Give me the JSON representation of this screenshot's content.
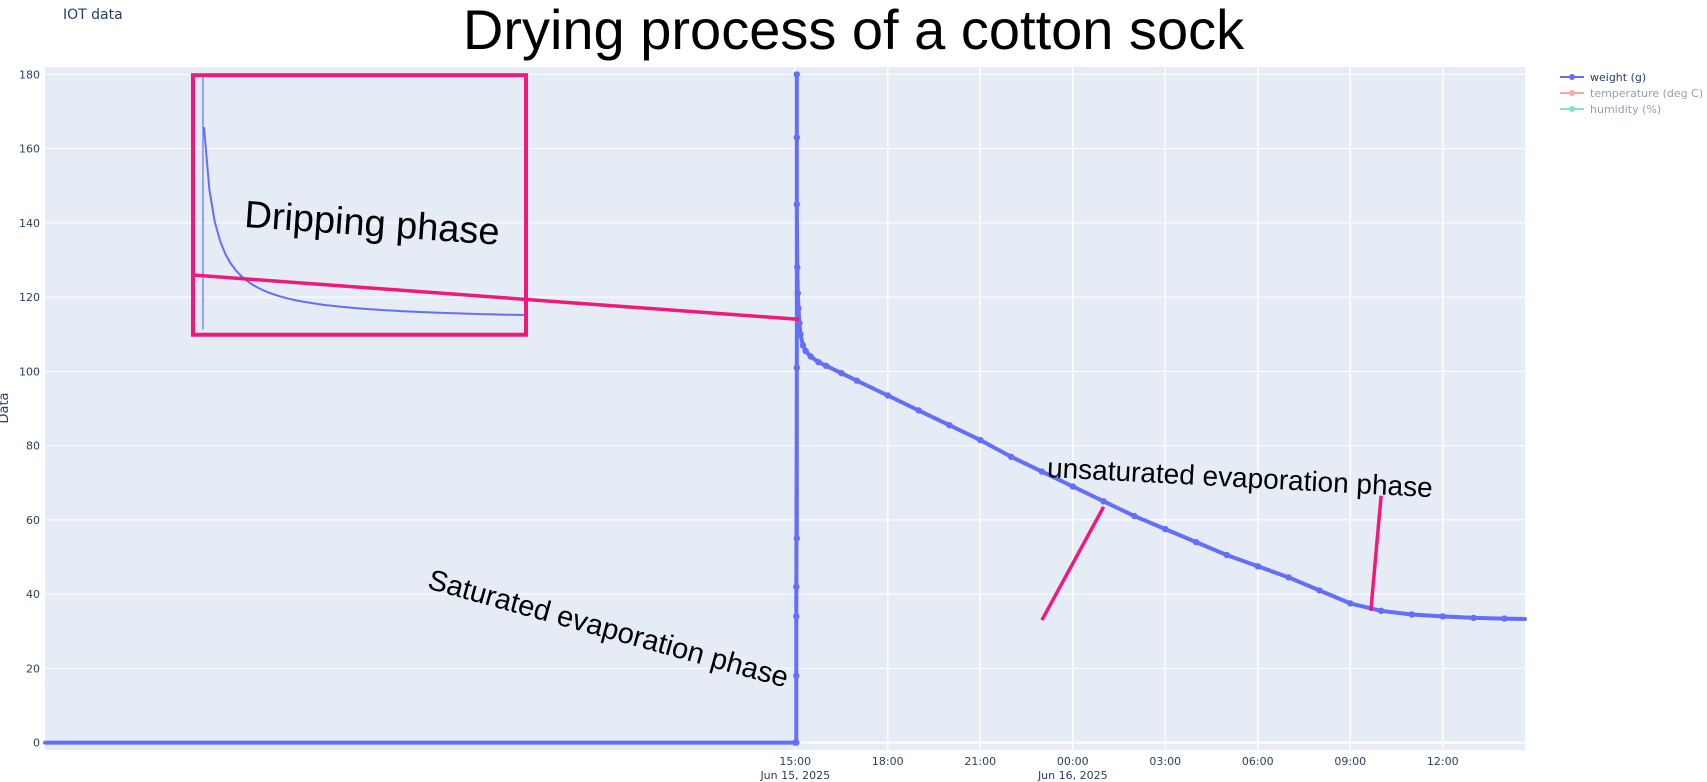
{
  "app": {
    "title": "IOT data"
  },
  "annotations": {
    "dripping": "Dripping phase",
    "saturated": "Saturated evaporation phase",
    "unsaturated": "unsaturated evaporation phase"
  },
  "colors": {
    "weight": "#636efa",
    "temperature": "#ef553b",
    "humidity": "#00cc96",
    "plot_bg": "#e5ecf6",
    "annotation": "#f0197a"
  },
  "chart_data": {
    "type": "line",
    "title": "Drying process of a cotton sock",
    "xlabel": "",
    "ylabel": "Data",
    "ylim": [
      -2,
      182
    ],
    "xlim": [
      "2025-06-14 14:40",
      "2025-06-16 14:40"
    ],
    "yticks": [
      0,
      20,
      40,
      60,
      80,
      100,
      120,
      140,
      160,
      180
    ],
    "xticks": [
      {
        "time": "2025-06-15 15:00",
        "label": "15:00",
        "sublabel": "Jun 15, 2025"
      },
      {
        "time": "2025-06-15 18:00",
        "label": "18:00",
        "sublabel": ""
      },
      {
        "time": "2025-06-15 21:00",
        "label": "21:00",
        "sublabel": ""
      },
      {
        "time": "2025-06-16 00:00",
        "label": "00:00",
        "sublabel": "Jun 16, 2025"
      },
      {
        "time": "2025-06-16 03:00",
        "label": "03:00",
        "sublabel": ""
      },
      {
        "time": "2025-06-16 06:00",
        "label": "06:00",
        "sublabel": ""
      },
      {
        "time": "2025-06-16 09:00",
        "label": "09:00",
        "sublabel": ""
      },
      {
        "time": "2025-06-16 12:00",
        "label": "12:00",
        "sublabel": ""
      }
    ],
    "grid": true,
    "legend_position": "top-right",
    "series": [
      {
        "name": "weight (g)",
        "visible": true,
        "x": [
          "2025-06-14 14:40",
          "2025-06-15 15:00",
          "2025-06-15 15:02",
          "2025-06-15 15:02",
          "2025-06-15 15:02",
          "2025-06-15 15:02",
          "2025-06-15 15:03",
          "2025-06-15 15:03",
          "2025-06-15 15:03",
          "2025-06-15 15:03",
          "2025-06-15 15:03",
          "2025-06-15 15:04",
          "2025-06-15 15:05",
          "2025-06-15 15:06",
          "2025-06-15 15:08",
          "2025-06-15 15:10",
          "2025-06-15 15:15",
          "2025-06-15 15:20",
          "2025-06-15 15:30",
          "2025-06-15 15:45",
          "2025-06-15 16:00",
          "2025-06-15 16:30",
          "2025-06-15 17:00",
          "2025-06-15 18:00",
          "2025-06-15 19:00",
          "2025-06-15 20:00",
          "2025-06-15 21:00",
          "2025-06-15 22:00",
          "2025-06-15 23:00",
          "2025-06-16 00:00",
          "2025-06-16 01:00",
          "2025-06-16 02:00",
          "2025-06-16 03:00",
          "2025-06-16 04:00",
          "2025-06-16 05:00",
          "2025-06-16 06:00",
          "2025-06-16 07:00",
          "2025-06-16 08:00",
          "2025-06-16 09:00",
          "2025-06-16 10:00",
          "2025-06-16 11:00",
          "2025-06-16 12:00",
          "2025-06-16 13:00",
          "2025-06-16 14:00",
          "2025-06-16 14:40"
        ],
        "y": [
          0,
          0,
          0,
          42,
          18,
          34,
          101,
          55,
          180,
          163,
          145,
          128,
          121,
          117,
          113,
          110,
          107,
          105.5,
          104,
          102.5,
          101.5,
          99.5,
          97.5,
          93.5,
          89.5,
          85.5,
          81.5,
          77,
          73,
          69,
          65,
          61,
          57.5,
          54,
          50.5,
          47.5,
          44.5,
          41,
          37.5,
          35.5,
          34.5,
          34,
          33.6,
          33.4,
          33.3
        ]
      },
      {
        "name": "temperature (deg C)",
        "visible": false,
        "x": [],
        "y": []
      },
      {
        "name": "humidity (%)",
        "visible": false,
        "x": [],
        "y": []
      }
    ]
  }
}
